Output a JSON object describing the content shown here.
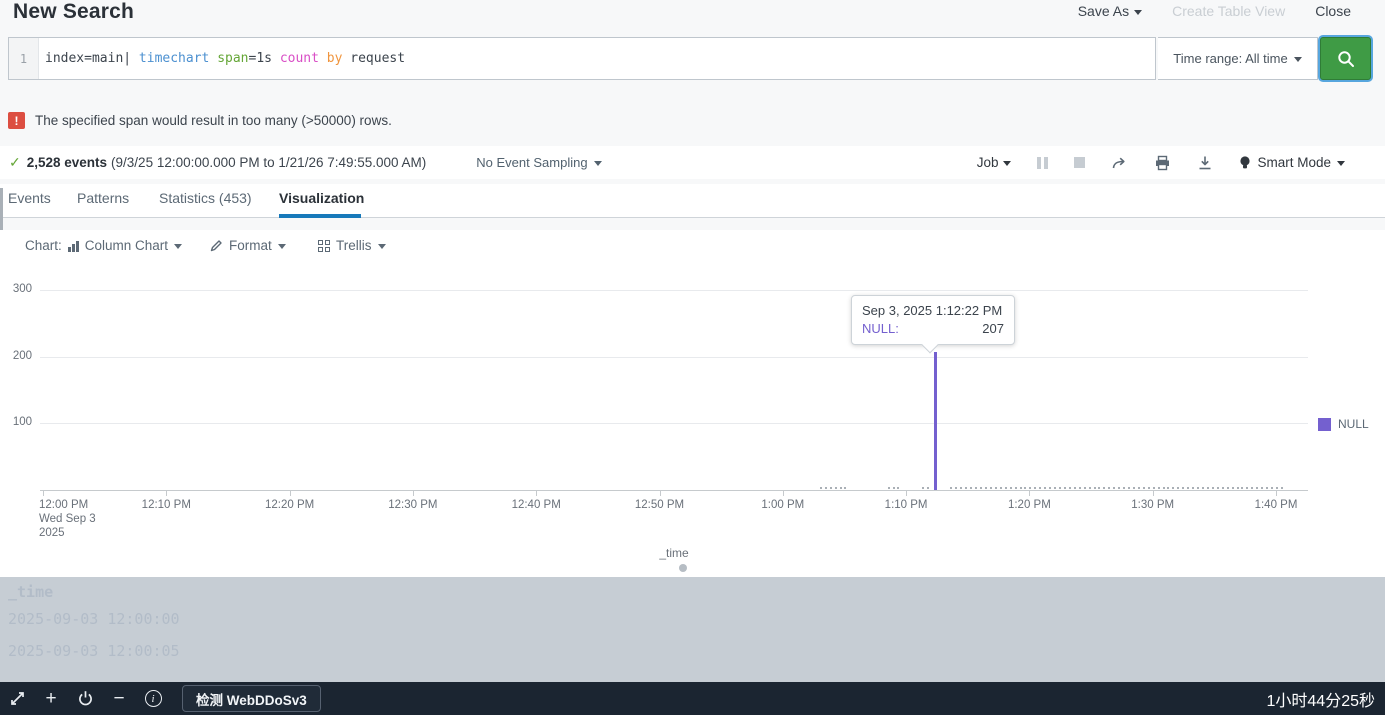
{
  "colors": {
    "accent_green": "#3f9b45",
    "check_green": "#65a637",
    "warning_red": "#dc4e41",
    "tab_underline_blue": "#1779ba",
    "series_purple": "#7460cf",
    "taskbar_bg": "#1b2531"
  },
  "header": {
    "title": "New Search",
    "save_as": "Save As",
    "create_table_view": "Create Table View",
    "close": "Close"
  },
  "search": {
    "line_number": "1",
    "query_full": "index=main| timechart span=1s count by request",
    "query_tokens": [
      {
        "text": "index=main| ",
        "kind": "plain"
      },
      {
        "text": "timechart ",
        "kind": "cmd"
      },
      {
        "text": "span",
        "kind": "arg"
      },
      {
        "text": "=1s ",
        "kind": "plain"
      },
      {
        "text": "count ",
        "kind": "func"
      },
      {
        "text": "by ",
        "kind": "kw"
      },
      {
        "text": "request",
        "kind": "plain"
      }
    ],
    "time_range_label": "Time range: All time",
    "search_button_icon": "magnifier-icon"
  },
  "warning": {
    "icon": "exclamation-icon",
    "icon_glyph": "!",
    "text": "The specified span would result in too many (>50000) rows."
  },
  "job_bar": {
    "check_glyph": "✓",
    "events_bold": "2,528 events",
    "events_range": "(9/3/25 12:00:00.000 PM to 1/21/26 7:49:55.000 AM)",
    "sampling_label": "No Event Sampling",
    "job_label": "Job",
    "smart_mode_label": "Smart Mode"
  },
  "tabs": [
    {
      "label": "Events",
      "active": false
    },
    {
      "label": "Patterns",
      "active": false
    },
    {
      "label": "Statistics (453)",
      "active": false
    },
    {
      "label": "Visualization",
      "active": true
    }
  ],
  "viz_controls": {
    "chart_prefix": "Chart:",
    "chart_type": "Column Chart",
    "format_label": "Format",
    "trellis_label": "Trellis"
  },
  "chart_data": {
    "type": "bar",
    "title": "",
    "xlabel": "_time",
    "ylabel": "NULL",
    "ylim": [
      0,
      300
    ],
    "yticks": [
      100,
      200,
      300
    ],
    "x_tick_labels": [
      "12:00 PM",
      "12:10 PM",
      "12:20 PM",
      "12:30 PM",
      "12:40 PM",
      "12:50 PM",
      "1:00 PM",
      "1:10 PM",
      "1:20 PM",
      "1:30 PM",
      "1:40 PM"
    ],
    "x_start_sublabels": [
      "Wed Sep 3",
      "2025"
    ],
    "grid": true,
    "legend_position": "right",
    "legend_entries": [
      "NULL"
    ],
    "series": [
      {
        "name": "NULL",
        "color": "#7460cf",
        "points": [
          {
            "time_label": "1:12:22 PM",
            "minutes_from_noon": 72.37,
            "value": 207
          }
        ]
      }
    ],
    "baseline_noise_ranges": [
      {
        "from": 63.0,
        "to": 65.3,
        "value": 1
      },
      {
        "from": 68.5,
        "to": 69.4,
        "value": 1
      },
      {
        "from": 71.3,
        "to": 72.0,
        "value": 1
      },
      {
        "from": 73.6,
        "to": 100.8,
        "value": 1
      }
    ],
    "tooltip": {
      "title": "Sep 3, 2025 1:12:22 PM",
      "series_label": "NULL:",
      "value": "207"
    }
  },
  "overlay_ghost": {
    "header": "_time",
    "row1": "2025-09-03 12:00:00",
    "row2": "2025-09-03 12:00:05"
  },
  "taskbar": {
    "detect_button": "检测 WebDDoSv3",
    "timer": "1小时44分25秒"
  }
}
